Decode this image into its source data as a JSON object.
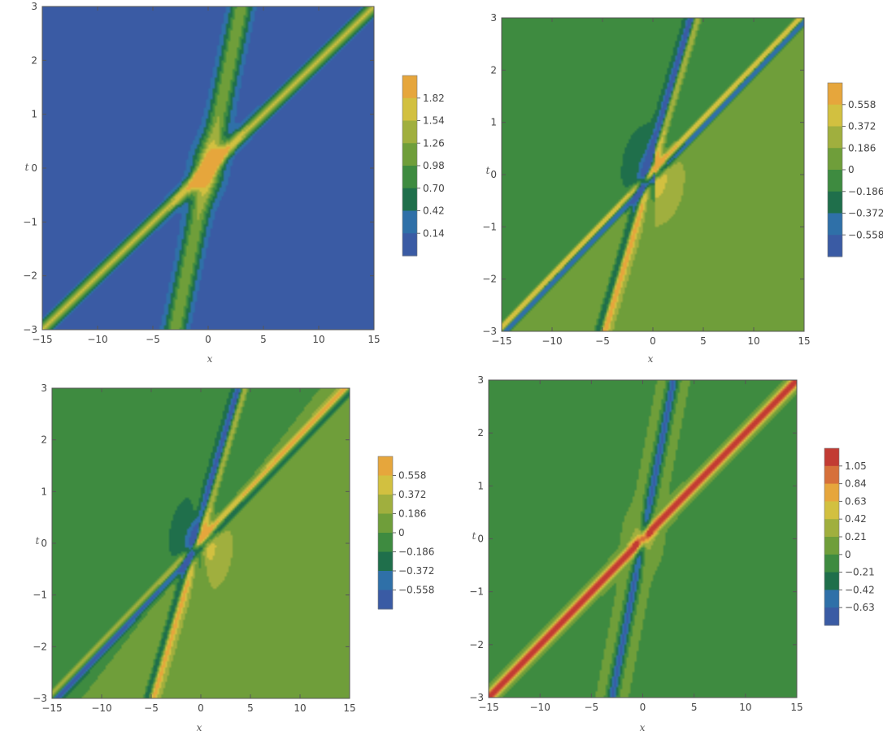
{
  "chart_data": [
    {
      "type": "heatmap",
      "xlabel": "x",
      "ylabel": "t",
      "xlim": [
        -15,
        15
      ],
      "ylim": [
        -3,
        3
      ],
      "xticks": [
        "−15",
        "−10",
        "−5",
        "0",
        "5",
        "10",
        "15"
      ],
      "yticks": [
        "−3",
        "−2",
        "−1",
        "0",
        "1",
        "2",
        "3"
      ],
      "colorbar": {
        "labels": [
          "1.82",
          "1.54",
          "1.26",
          "0.98",
          "0.70",
          "0.42",
          "0.14"
        ],
        "zmin": 0,
        "zmax": 1.96
      },
      "features": [
        {
          "kind": "diagonal-band",
          "peak": 1.4,
          "slope": 0.2
        },
        {
          "kind": "steep-band",
          "peak": 0.95,
          "slope": 1.0
        }
      ]
    },
    {
      "type": "heatmap",
      "xlabel": "x",
      "ylabel": "t",
      "xlim": [
        -15,
        15
      ],
      "ylim": [
        -3,
        3
      ],
      "xticks": [
        "−15",
        "−10",
        "−5",
        "0",
        "5",
        "10",
        "15"
      ],
      "yticks": [
        "−3",
        "−2",
        "−1",
        "0",
        "1",
        "2",
        "3"
      ],
      "colorbar": {
        "labels": [
          "0.558",
          "0.372",
          "0.186",
          "0",
          "−0.186",
          "−0.372",
          "−0.558"
        ],
        "zmin": -0.651,
        "zmax": 0.651
      }
    },
    {
      "type": "heatmap",
      "xlabel": "x",
      "ylabel": "t",
      "xlim": [
        -15,
        15
      ],
      "ylim": [
        -3,
        3
      ],
      "xticks": [
        "−15",
        "−10",
        "−5",
        "0",
        "5",
        "10",
        "15"
      ],
      "yticks": [
        "−3",
        "−2",
        "−1",
        "0",
        "1",
        "2",
        "3"
      ],
      "colorbar": {
        "labels": [
          "0.558",
          "0.372",
          "0.186",
          "0",
          "−0.186",
          "−0.372",
          "−0.558"
        ],
        "zmin": -0.651,
        "zmax": 0.651
      }
    },
    {
      "type": "heatmap",
      "xlabel": "x",
      "ylabel": "t",
      "xlim": [
        -15,
        15
      ],
      "ylim": [
        -3,
        3
      ],
      "xticks": [
        "−15",
        "−10",
        "−5",
        "0",
        "5",
        "10",
        "15"
      ],
      "yticks": [
        "−3",
        "−2",
        "−1",
        "0",
        "1",
        "2",
        "3"
      ],
      "colorbar": {
        "labels": [
          "1.05",
          "0.84",
          "0.63",
          "0.42",
          "0.21",
          "0",
          "−0.21",
          "−0.42",
          "−0.63"
        ],
        "zmin": -0.735,
        "zmax": 1.155
      }
    }
  ],
  "colors": [
    "#3a5ba4",
    "#2f70a8",
    "#1f6f4b",
    "#3e8b40",
    "#6f9e3a",
    "#a0af3e",
    "#d2c040",
    "#e6a63c",
    "#d6703a",
    "#c23b33"
  ]
}
